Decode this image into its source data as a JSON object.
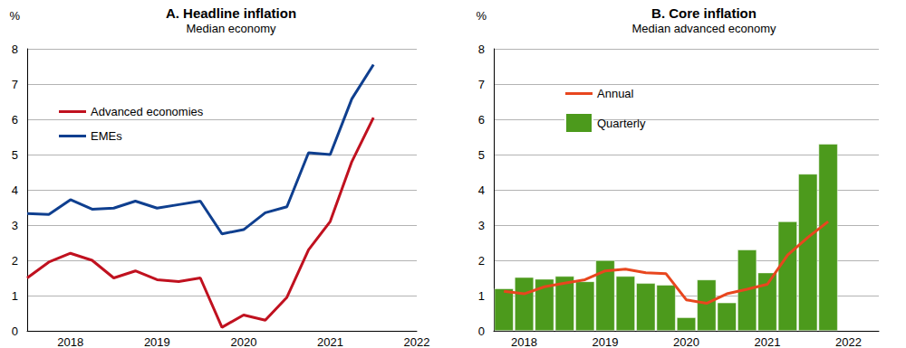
{
  "chart_data": [
    {
      "type": "line",
      "title": "A. Headline inflation",
      "subtitle": "Median economy",
      "y_label": "%",
      "categories": [
        null,
        null,
        "2018",
        null,
        null,
        null,
        "2019",
        null,
        null,
        null,
        "2020",
        null,
        null,
        null,
        "2021",
        null,
        null,
        null,
        "2022"
      ],
      "series": [
        {
          "name": "Advanced economies",
          "color": "#c0111f",
          "values": [
            1.5,
            1.95,
            2.2,
            2.0,
            1.5,
            1.7,
            1.45,
            1.4,
            1.5,
            0.1,
            0.45,
            0.3,
            0.95,
            2.3,
            3.1,
            4.8,
            6.05,
            null,
            null
          ]
        },
        {
          "name": "EMEs",
          "color": "#0f3f8f",
          "values": [
            3.33,
            3.3,
            3.72,
            3.45,
            3.48,
            3.68,
            3.48,
            3.58,
            3.68,
            2.75,
            2.87,
            3.35,
            3.52,
            5.05,
            5.0,
            6.58,
            7.55,
            null,
            null
          ]
        }
      ],
      "ylim": [
        0,
        8
      ],
      "yticks": [
        0,
        1,
        2,
        3,
        4,
        5,
        6,
        7,
        8
      ],
      "grid": true,
      "legend": "top-left"
    },
    {
      "type": "bar",
      "title": "B. Core inflation",
      "subtitle": "Median advanced economy",
      "y_label": "%",
      "categories": [
        null,
        "2018",
        null,
        null,
        null,
        "2019",
        null,
        null,
        null,
        "2020",
        null,
        null,
        null,
        "2021",
        null,
        null,
        null,
        "2022",
        null
      ],
      "series": [
        {
          "name": "Annual",
          "type": "line",
          "color": "#e8461e",
          "values": [
            1.12,
            1.05,
            1.25,
            1.35,
            1.45,
            1.7,
            1.75,
            1.65,
            1.62,
            0.88,
            0.78,
            1.05,
            1.18,
            1.32,
            2.15,
            2.65,
            3.1,
            null,
            null
          ]
        },
        {
          "name": "Quarterly",
          "color": "#4c9a1c",
          "values": [
            1.2,
            1.52,
            1.47,
            1.55,
            1.4,
            2.0,
            1.55,
            1.35,
            1.3,
            0.38,
            1.45,
            0.8,
            2.3,
            1.65,
            3.1,
            4.45,
            5.3,
            null,
            null
          ]
        }
      ],
      "ylim": [
        0,
        8
      ],
      "yticks": [
        0,
        1,
        2,
        3,
        4,
        5,
        6,
        7,
        8
      ],
      "grid": true,
      "legend": "top-left"
    }
  ]
}
